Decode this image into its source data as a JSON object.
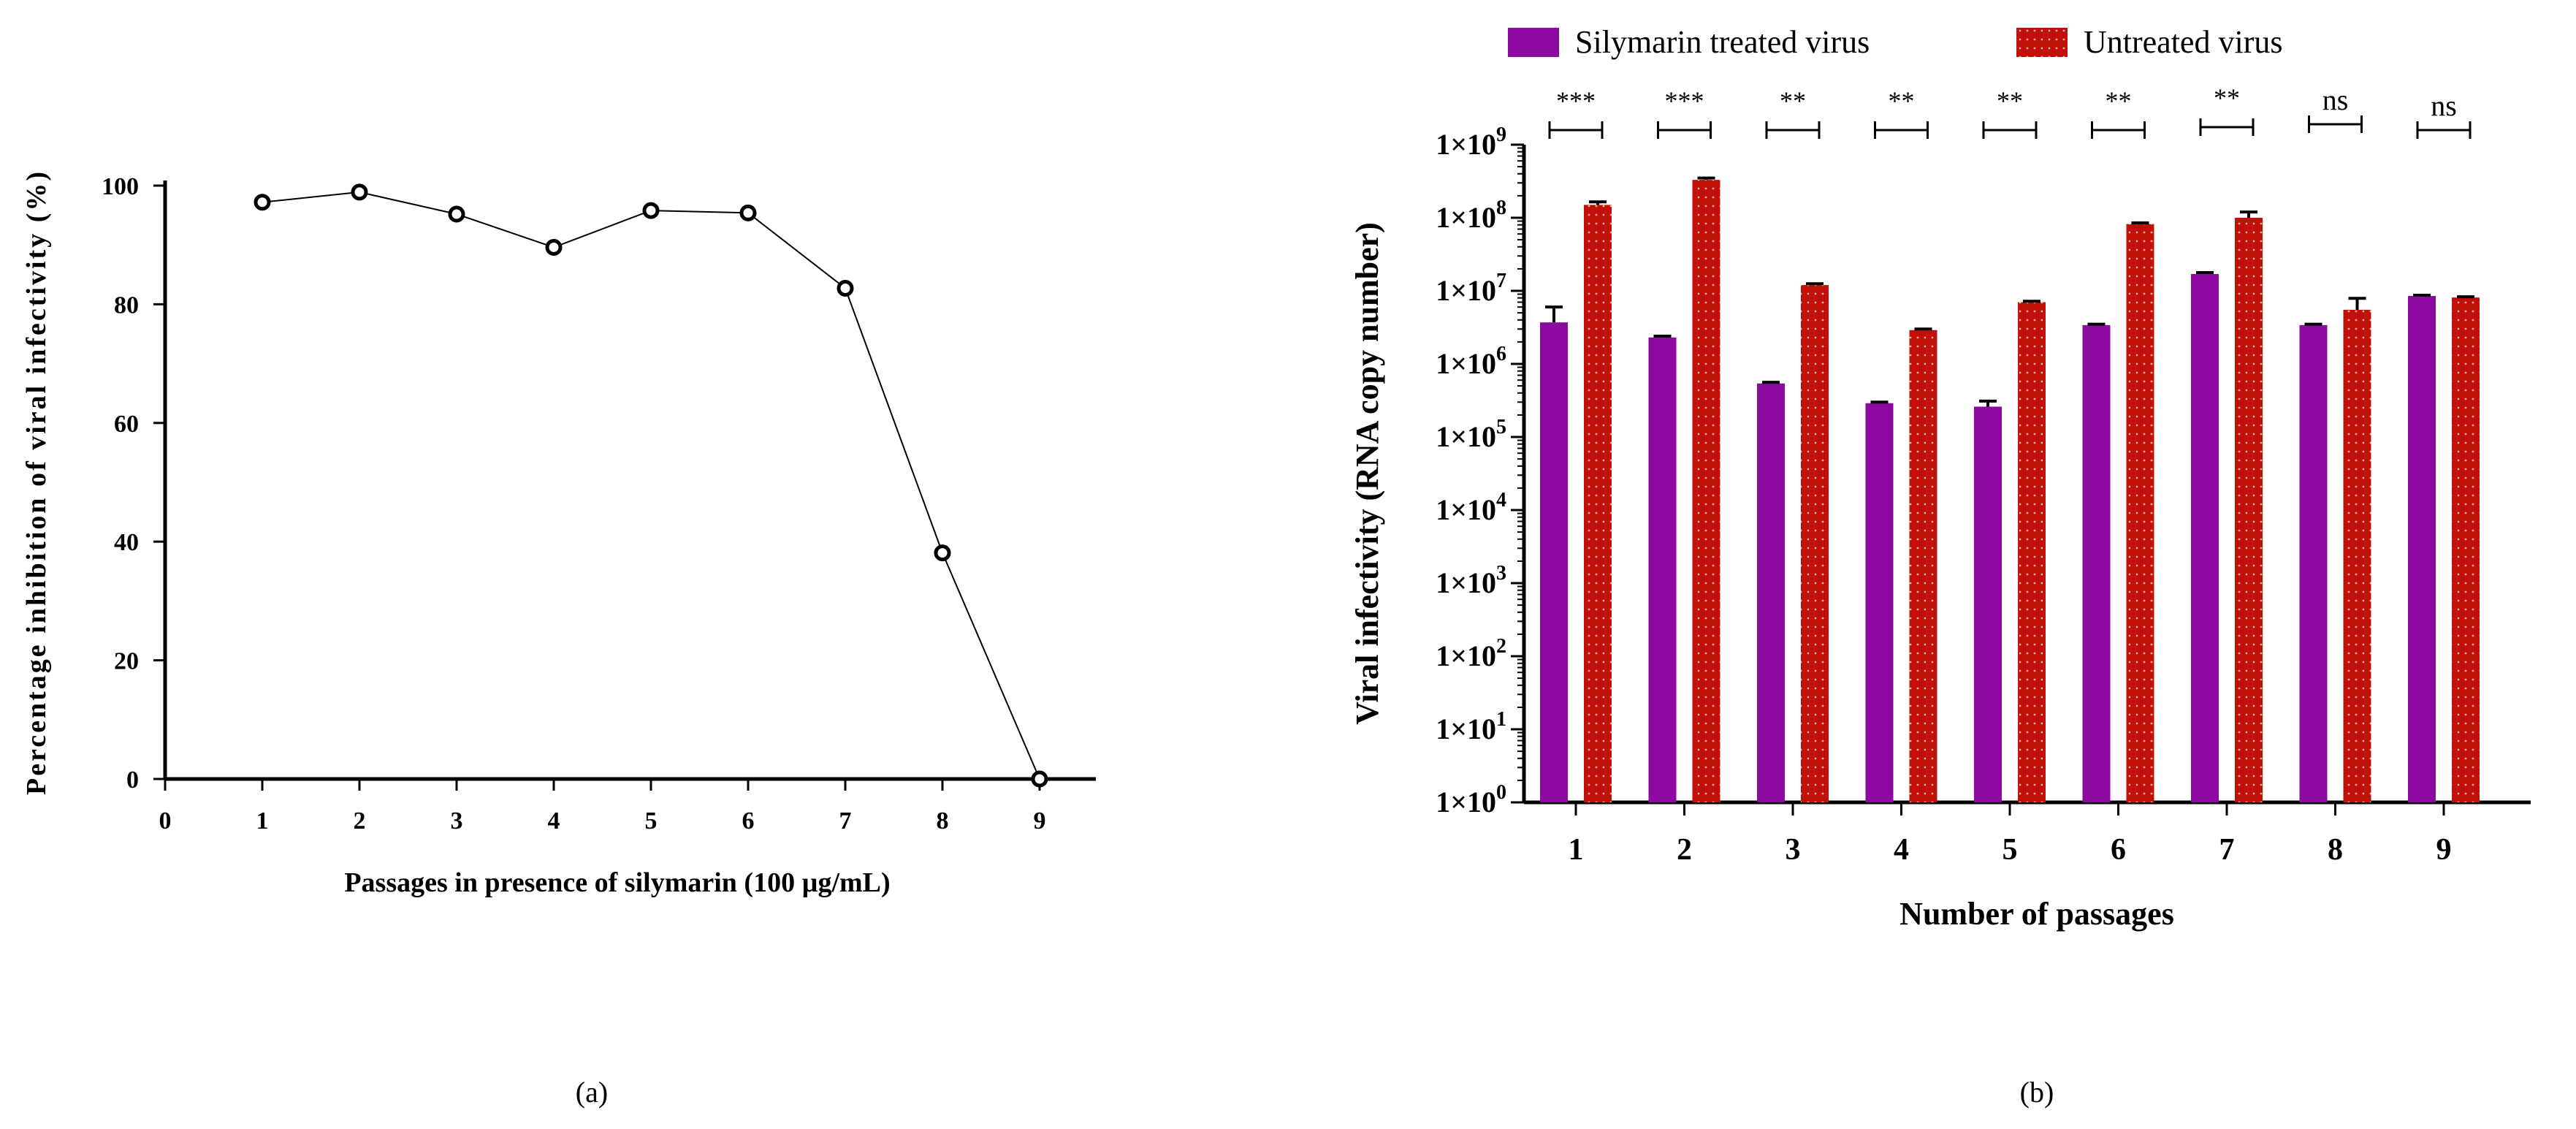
{
  "chart_data": [
    {
      "panel": "(a)",
      "type": "line",
      "title": "",
      "xlabel": "Passages in presence of silymarin  (100 µg/mL)",
      "ylabel": "Percentage inhibition of viral infectivity (%)",
      "xlim": [
        0,
        9.6
      ],
      "ylim": [
        0,
        100
      ],
      "xticks": [
        "0",
        "1",
        "2",
        "3",
        "4",
        "5",
        "6",
        "7",
        "8",
        "9"
      ],
      "yticks": [
        "0",
        "20",
        "40",
        "60",
        "80",
        "100"
      ],
      "x": [
        1,
        2,
        3,
        4,
        5,
        6,
        7,
        8,
        9
      ],
      "y": [
        97.2,
        98.9,
        95.2,
        89.6,
        95.8,
        95.4,
        82.7,
        38.1,
        0
      ]
    },
    {
      "panel": "(b)",
      "type": "bar",
      "scale": "log10",
      "title": "",
      "xlabel": "Number of passages",
      "ylabel": "Viral infectivity (RNA copy number)",
      "ylim": [
        1,
        1000000000
      ],
      "yticks": [
        {
          "base": "1×10",
          "exp": "0"
        },
        {
          "base": "1×10",
          "exp": "1"
        },
        {
          "base": "1×10",
          "exp": "2"
        },
        {
          "base": "1×10",
          "exp": "3"
        },
        {
          "base": "1×10",
          "exp": "4"
        },
        {
          "base": "1×10",
          "exp": "5"
        },
        {
          "base": "1×10",
          "exp": "6"
        },
        {
          "base": "1×10",
          "exp": "7"
        },
        {
          "base": "1×10",
          "exp": "8"
        },
        {
          "base": "1×10",
          "exp": "9"
        }
      ],
      "categories": [
        "1",
        "2",
        "3",
        "4",
        "5",
        "6",
        "7",
        "8",
        "9"
      ],
      "series": [
        {
          "name": "Silymarin treated virus",
          "color": "#8c0aa0",
          "values": [
            3700000,
            2300000,
            540000,
            290000,
            260000,
            3400000,
            17000000,
            3400000,
            8500000
          ],
          "errors": [
            2300000,
            100000,
            20000,
            10000,
            50000,
            100000,
            800000,
            100000,
            200000
          ]
        },
        {
          "name": "Untreated virus",
          "color": "#c0100a",
          "values": [
            150000000,
            330000000,
            12000000,
            2900000,
            7000000,
            82000000,
            100000000,
            5500000,
            8100000
          ],
          "errors": [
            15000000,
            20000000,
            500000,
            100000,
            200000,
            3000000,
            20000000,
            2400000,
            200000
          ]
        }
      ],
      "significance": [
        "***",
        "***",
        "**",
        "**",
        "**",
        "**",
        "**",
        "ns",
        "ns"
      ]
    }
  ],
  "captions": {
    "a": "(a)",
    "b": "(b)"
  }
}
